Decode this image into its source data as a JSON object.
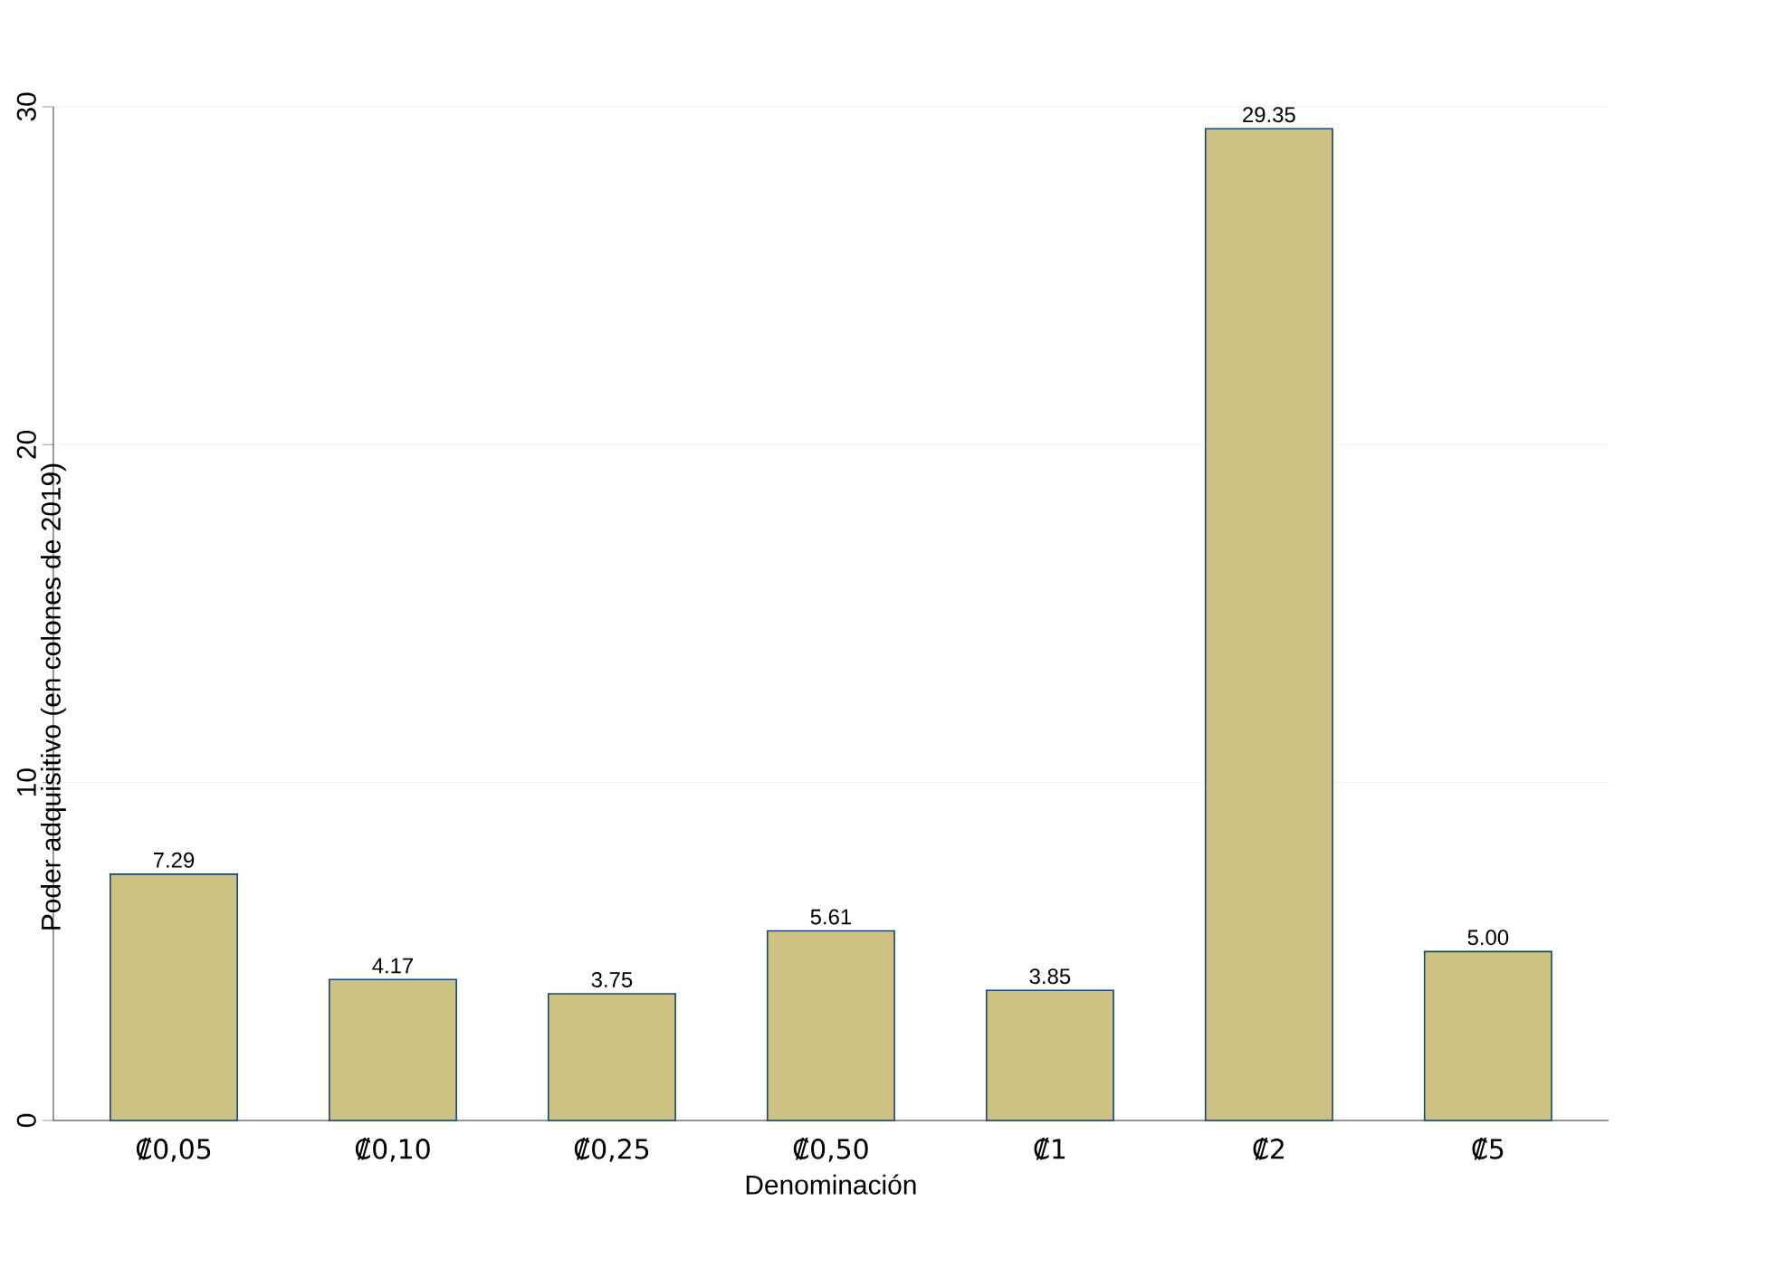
{
  "chart_data": {
    "type": "bar",
    "xlabel": "Denominación",
    "ylabel": "Poder adquisitivo (en colones de 2019)",
    "categories": [
      "₡0,05",
      "₡0,10",
      "₡0,25",
      "₡0,50",
      "₡1",
      "₡2",
      "₡5"
    ],
    "values": [
      7.29,
      4.17,
      3.75,
      5.61,
      3.85,
      29.35,
      5.0
    ],
    "value_labels": [
      "7.29",
      "4.17",
      "3.75",
      "5.61",
      "3.85",
      "29.35",
      "5.00"
    ],
    "color": "#cdc283",
    "ylim": [
      0,
      30
    ],
    "yticks": [
      0,
      10,
      20,
      30
    ],
    "grid": "y"
  }
}
